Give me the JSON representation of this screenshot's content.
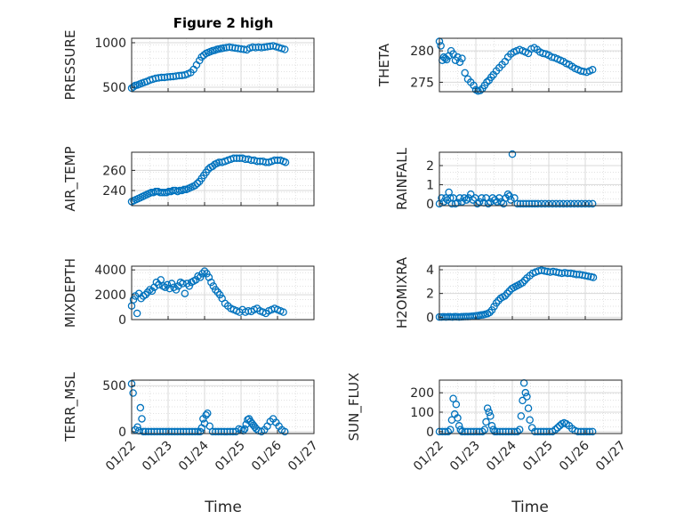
{
  "figure": {
    "title": "Figure 2 high"
  },
  "x_tick_labels": [
    "01/22",
    "01/23",
    "01/24",
    "01/25",
    "01/26",
    "01/27"
  ],
  "x_axis_label": "Time",
  "colors": {
    "marker": "#0072bd",
    "axis": "#262626",
    "grid": "#d9d9d9"
  },
  "chart_data": [
    {
      "type": "scatter",
      "id": "pressure",
      "ylabel": "PRESSURE",
      "title": "Figure 2 high",
      "xlabel": "",
      "ylim": [
        450,
        1050
      ],
      "yticks": [
        500,
        1000
      ],
      "xlim": [
        0,
        5
      ],
      "grid": true,
      "minor_grid": true,
      "x": [
        0.0,
        0.05,
        0.1,
        0.16,
        0.22,
        0.28,
        0.35,
        0.42,
        0.5,
        0.58,
        0.66,
        0.74,
        0.82,
        0.9,
        0.98,
        1.06,
        1.14,
        1.22,
        1.3,
        1.38,
        1.46,
        1.54,
        1.62,
        1.7,
        1.78,
        1.86,
        1.92,
        1.98,
        2.04,
        2.1,
        2.16,
        2.22,
        2.28,
        2.34,
        2.4,
        2.46,
        2.52,
        2.6,
        2.68,
        2.76,
        2.84,
        2.92,
        3.0,
        3.08,
        3.16,
        3.24,
        3.32,
        3.4,
        3.48,
        3.56,
        3.64,
        3.72,
        3.8,
        3.88,
        3.96,
        4.04,
        4.12,
        4.2
      ],
      "y": [
        490,
        505,
        520,
        525,
        535,
        545,
        555,
        565,
        580,
        590,
        600,
        605,
        610,
        610,
        615,
        618,
        620,
        625,
        630,
        632,
        638,
        650,
        665,
        700,
        750,
        800,
        840,
        860,
        880,
        890,
        900,
        910,
        915,
        925,
        930,
        935,
        940,
        945,
        950,
        945,
        940,
        935,
        930,
        925,
        920,
        940,
        950,
        945,
        950,
        945,
        950,
        955,
        960,
        965,
        955,
        945,
        935,
        925
      ]
    },
    {
      "type": "scatter",
      "id": "theta",
      "ylabel": "THETA",
      "xlabel": "",
      "ylim": [
        273.5,
        282
      ],
      "yticks": [
        275,
        280
      ],
      "xlim": [
        0,
        5
      ],
      "grid": true,
      "minor_grid": true,
      "x": [
        0.0,
        0.04,
        0.08,
        0.12,
        0.16,
        0.2,
        0.26,
        0.32,
        0.38,
        0.44,
        0.5,
        0.56,
        0.62,
        0.7,
        0.78,
        0.86,
        0.94,
        1.0,
        1.06,
        1.12,
        1.18,
        1.24,
        1.3,
        1.36,
        1.42,
        1.48,
        1.56,
        1.64,
        1.72,
        1.8,
        1.88,
        1.96,
        2.04,
        2.12,
        2.2,
        2.28,
        2.36,
        2.44,
        2.52,
        2.6,
        2.68,
        2.76,
        2.84,
        2.92,
        3.0,
        3.08,
        3.16,
        3.24,
        3.32,
        3.4,
        3.48,
        3.56,
        3.64,
        3.72,
        3.8,
        3.88,
        3.96,
        4.04,
        4.12,
        4.2
      ],
      "y": [
        281.5,
        280.8,
        278.5,
        279.0,
        278.8,
        278.6,
        279.2,
        280.0,
        279.5,
        278.5,
        279.0,
        278.2,
        278.8,
        276.5,
        275.5,
        275.0,
        274.5,
        273.8,
        273.6,
        273.7,
        274.0,
        274.5,
        275.0,
        275.3,
        275.8,
        276.2,
        276.8,
        277.3,
        277.8,
        278.3,
        279.0,
        279.5,
        279.8,
        280.0,
        280.2,
        280.0,
        279.8,
        279.6,
        280.3,
        280.5,
        280.2,
        279.8,
        279.6,
        279.5,
        279.3,
        279.0,
        278.9,
        278.7,
        278.5,
        278.3,
        278.0,
        277.8,
        277.5,
        277.2,
        277.0,
        276.8,
        276.7,
        276.6,
        276.8,
        277.0
      ]
    },
    {
      "type": "scatter",
      "id": "air_temp",
      "ylabel": "AIR_TEMP",
      "xlabel": "",
      "ylim": [
        225,
        278
      ],
      "yticks": [
        240,
        260
      ],
      "xlim": [
        0,
        5
      ],
      "grid": true,
      "minor_grid": true,
      "x": [
        0.0,
        0.06,
        0.12,
        0.18,
        0.24,
        0.3,
        0.36,
        0.42,
        0.48,
        0.54,
        0.6,
        0.66,
        0.72,
        0.78,
        0.84,
        0.9,
        0.96,
        1.02,
        1.08,
        1.14,
        1.2,
        1.26,
        1.32,
        1.38,
        1.44,
        1.5,
        1.56,
        1.62,
        1.68,
        1.74,
        1.8,
        1.86,
        1.92,
        1.98,
        2.04,
        2.1,
        2.16,
        2.22,
        2.28,
        2.34,
        2.4,
        2.48,
        2.56,
        2.64,
        2.72,
        2.8,
        2.88,
        2.96,
        3.04,
        3.12,
        3.2,
        3.28,
        3.36,
        3.44,
        3.52,
        3.6,
        3.68,
        3.76,
        3.84,
        3.92,
        4.0,
        4.08,
        4.16,
        4.22
      ],
      "y": [
        229,
        230,
        231,
        232,
        233,
        234,
        235,
        236,
        237,
        238,
        238,
        239,
        239,
        238,
        238,
        238,
        238,
        239,
        239,
        240,
        240,
        239,
        240,
        240,
        241,
        241,
        242,
        243,
        244,
        245,
        247,
        249,
        252,
        255,
        258,
        261,
        263,
        264,
        266,
        267,
        268,
        268,
        269,
        270,
        271,
        272,
        272,
        272,
        272,
        271,
        271,
        270,
        270,
        269,
        269,
        269,
        268,
        268,
        269,
        270,
        270,
        270,
        269,
        268
      ]
    },
    {
      "type": "scatter",
      "id": "rainfall",
      "ylabel": "RAINFALL",
      "xlabel": "",
      "ylim": [
        -0.1,
        2.7
      ],
      "yticks": [
        0,
        1,
        2
      ],
      "xlim": [
        0,
        5
      ],
      "grid": true,
      "minor_grid": true,
      "x": [
        0.0,
        0.06,
        0.12,
        0.18,
        0.22,
        0.26,
        0.3,
        0.34,
        0.38,
        0.44,
        0.5,
        0.56,
        0.62,
        0.68,
        0.74,
        0.8,
        0.86,
        0.92,
        0.98,
        1.04,
        1.1,
        1.16,
        1.22,
        1.28,
        1.34,
        1.4,
        1.46,
        1.52,
        1.58,
        1.64,
        1.7,
        1.76,
        1.82,
        1.88,
        1.92,
        1.96,
        2.0,
        2.06,
        2.14,
        2.22,
        2.3,
        2.38,
        2.46,
        2.54,
        2.62,
        2.7,
        2.8,
        2.9,
        3.0,
        3.1,
        3.2,
        3.3,
        3.4,
        3.5,
        3.6,
        3.7,
        3.8,
        3.9,
        4.0,
        4.1,
        4.2
      ],
      "y": [
        0,
        0.3,
        0.1,
        0.3,
        0.2,
        0.6,
        0.3,
        0,
        0.3,
        0,
        0.05,
        0.3,
        0.1,
        0.3,
        0.2,
        0.3,
        0.5,
        0.2,
        0.3,
        0,
        0.1,
        0.3,
        0.05,
        0.3,
        0,
        0.1,
        0.3,
        0.2,
        0.1,
        0.3,
        0.1,
        0,
        0.3,
        0.5,
        0.4,
        0.2,
        2.6,
        0.3,
        0,
        0,
        0,
        0,
        0,
        0,
        0,
        0,
        0,
        0,
        0,
        0,
        0,
        0,
        0,
        0,
        0,
        0,
        0,
        0,
        0,
        0,
        0
      ]
    },
    {
      "type": "scatter",
      "id": "mixdepth",
      "ylabel": "MIXDEPTH",
      "xlabel": "",
      "ylim": [
        0,
        4300
      ],
      "yticks": [
        0,
        2000,
        4000
      ],
      "xlim": [
        0,
        5
      ],
      "grid": true,
      "minor_grid": true,
      "x": [
        0.0,
        0.05,
        0.1,
        0.15,
        0.2,
        0.26,
        0.32,
        0.38,
        0.44,
        0.5,
        0.56,
        0.62,
        0.68,
        0.74,
        0.8,
        0.86,
        0.92,
        0.98,
        1.04,
        1.1,
        1.16,
        1.22,
        1.28,
        1.34,
        1.4,
        1.46,
        1.52,
        1.58,
        1.64,
        1.7,
        1.76,
        1.82,
        1.88,
        1.94,
        2.0,
        2.06,
        2.12,
        2.18,
        2.24,
        2.3,
        2.36,
        2.42,
        2.48,
        2.56,
        2.64,
        2.72,
        2.8,
        2.88,
        2.96,
        3.04,
        3.12,
        3.2,
        3.28,
        3.36,
        3.44,
        3.52,
        3.6,
        3.68,
        3.76,
        3.84,
        3.92,
        4.0,
        4.08,
        4.16
      ],
      "y": [
        1100,
        1600,
        1900,
        500,
        2100,
        1700,
        1900,
        2000,
        2200,
        2400,
        2300,
        2600,
        3000,
        2800,
        3200,
        2700,
        2600,
        2800,
        2500,
        2900,
        2600,
        2400,
        2700,
        3000,
        2900,
        2100,
        2900,
        2700,
        3000,
        3100,
        3200,
        3500,
        3400,
        3700,
        3900,
        3700,
        3400,
        3000,
        2700,
        2400,
        2200,
        2000,
        1700,
        1300,
        1100,
        900,
        800,
        700,
        600,
        800,
        600,
        700,
        650,
        800,
        900,
        700,
        600,
        500,
        700,
        800,
        900,
        800,
        700,
        600
      ]
    },
    {
      "type": "scatter",
      "id": "h2omixra",
      "ylabel": "H2OMIXRA",
      "xlabel": "",
      "ylim": [
        -0.2,
        4.3
      ],
      "yticks": [
        0,
        2,
        4
      ],
      "xlim": [
        0,
        5
      ],
      "grid": true,
      "minor_grid": true,
      "x": [
        0.0,
        0.06,
        0.12,
        0.18,
        0.24,
        0.3,
        0.36,
        0.42,
        0.48,
        0.54,
        0.6,
        0.66,
        0.72,
        0.78,
        0.84,
        0.9,
        0.96,
        1.02,
        1.08,
        1.14,
        1.2,
        1.26,
        1.32,
        1.38,
        1.44,
        1.5,
        1.56,
        1.62,
        1.68,
        1.74,
        1.8,
        1.86,
        1.92,
        1.98,
        2.04,
        2.1,
        2.16,
        2.22,
        2.28,
        2.34,
        2.4,
        2.48,
        2.56,
        2.64,
        2.72,
        2.8,
        2.88,
        2.96,
        3.04,
        3.12,
        3.2,
        3.28,
        3.36,
        3.44,
        3.52,
        3.6,
        3.68,
        3.76,
        3.84,
        3.92,
        4.0,
        4.08,
        4.16,
        4.22
      ],
      "y": [
        0.02,
        0.02,
        0.03,
        0.02,
        0.03,
        0.03,
        0.02,
        0.04,
        0.03,
        0.02,
        0.03,
        0.04,
        0.05,
        0.05,
        0.06,
        0.08,
        0.1,
        0.12,
        0.15,
        0.18,
        0.2,
        0.25,
        0.3,
        0.4,
        0.6,
        0.9,
        1.2,
        1.4,
        1.6,
        1.7,
        1.8,
        2.0,
        2.2,
        2.4,
        2.5,
        2.6,
        2.7,
        2.8,
        2.9,
        3.1,
        3.3,
        3.5,
        3.7,
        3.8,
        3.9,
        3.95,
        3.9,
        3.85,
        3.8,
        3.85,
        3.8,
        3.75,
        3.7,
        3.75,
        3.7,
        3.7,
        3.65,
        3.6,
        3.6,
        3.55,
        3.5,
        3.45,
        3.4,
        3.35
      ]
    },
    {
      "type": "scatter",
      "id": "terr_msl",
      "ylabel": "TERR_MSL",
      "xlabel": "Time",
      "ylim": [
        -20,
        560
      ],
      "yticks": [
        0,
        500
      ],
      "xlim": [
        0,
        5
      ],
      "grid": true,
      "minor_grid": true,
      "x": [
        0.0,
        0.04,
        0.1,
        0.16,
        0.2,
        0.24,
        0.28,
        0.32,
        0.38,
        0.46,
        0.54,
        0.62,
        0.7,
        0.78,
        0.86,
        0.94,
        1.02,
        1.1,
        1.18,
        1.26,
        1.34,
        1.42,
        1.5,
        1.58,
        1.66,
        1.74,
        1.82,
        1.88,
        1.92,
        1.96,
        2.0,
        2.04,
        2.08,
        2.14,
        2.22,
        2.3,
        2.38,
        2.46,
        2.54,
        2.62,
        2.7,
        2.78,
        2.86,
        2.94,
        3.0,
        3.06,
        3.1,
        3.14,
        3.18,
        3.22,
        3.26,
        3.3,
        3.34,
        3.38,
        3.42,
        3.48,
        3.56,
        3.64,
        3.72,
        3.8,
        3.88,
        3.96,
        4.04,
        4.12,
        4.2
      ],
      "y": [
        520,
        420,
        20,
        50,
        10,
        260,
        140,
        0,
        0,
        0,
        0,
        0,
        0,
        0,
        0,
        0,
        0,
        0,
        0,
        0,
        0,
        0,
        0,
        0,
        0,
        0,
        0,
        0,
        40,
        140,
        90,
        180,
        200,
        60,
        0,
        0,
        0,
        0,
        0,
        0,
        0,
        0,
        0,
        30,
        20,
        10,
        30,
        80,
        130,
        140,
        110,
        90,
        70,
        50,
        30,
        10,
        0,
        20,
        60,
        110,
        140,
        100,
        60,
        20,
        0
      ]
    },
    {
      "type": "scatter",
      "id": "sun_flux",
      "ylabel": "SUN_FLUX",
      "xlabel": "Time",
      "ylim": [
        -10,
        265
      ],
      "yticks": [
        0,
        100,
        200
      ],
      "xlim": [
        0,
        5
      ],
      "grid": true,
      "minor_grid": true,
      "x": [
        0.0,
        0.08,
        0.16,
        0.24,
        0.3,
        0.34,
        0.38,
        0.42,
        0.46,
        0.5,
        0.54,
        0.58,
        0.62,
        0.7,
        0.78,
        0.86,
        0.94,
        1.02,
        1.1,
        1.18,
        1.24,
        1.28,
        1.32,
        1.36,
        1.4,
        1.44,
        1.48,
        1.52,
        1.58,
        1.66,
        1.74,
        1.82,
        1.9,
        1.98,
        2.06,
        2.14,
        2.2,
        2.24,
        2.28,
        2.32,
        2.36,
        2.4,
        2.44,
        2.48,
        2.54,
        2.62,
        2.7,
        2.78,
        2.86,
        2.94,
        3.02,
        3.1,
        3.18,
        3.24,
        3.3,
        3.36,
        3.42,
        3.48,
        3.56,
        3.64,
        3.72,
        3.8,
        3.88,
        3.96,
        4.04,
        4.12,
        4.2
      ],
      "y": [
        0,
        0,
        0,
        0,
        10,
        60,
        170,
        90,
        140,
        70,
        30,
        10,
        0,
        0,
        0,
        0,
        0,
        0,
        0,
        0,
        10,
        50,
        120,
        100,
        80,
        30,
        10,
        0,
        0,
        0,
        0,
        0,
        0,
        0,
        0,
        0,
        10,
        80,
        160,
        250,
        200,
        180,
        120,
        60,
        20,
        0,
        0,
        0,
        0,
        0,
        0,
        0,
        10,
        20,
        30,
        40,
        45,
        40,
        30,
        15,
        5,
        0,
        0,
        0,
        0,
        0,
        0
      ]
    }
  ]
}
